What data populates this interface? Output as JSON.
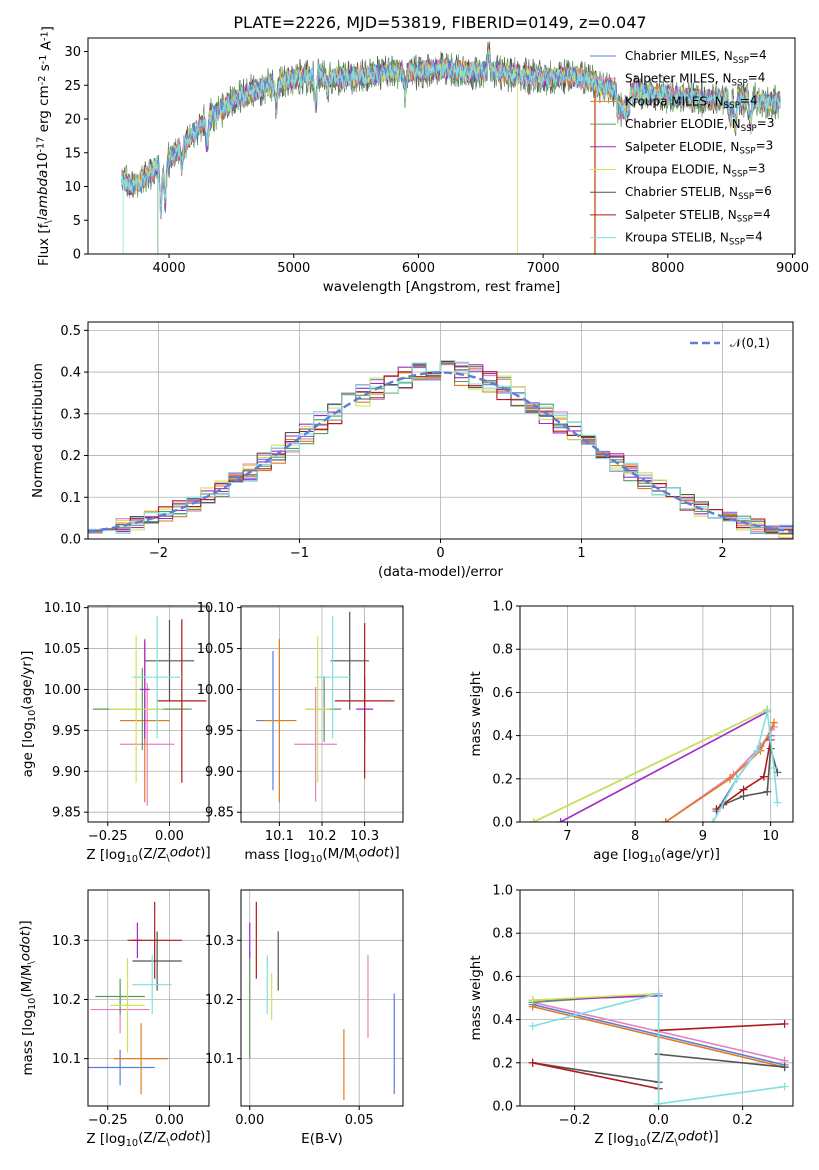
{
  "figure": {
    "title": "PLATE=2226, MJD=53819, FIBERID=0149, z=0.047"
  },
  "colors": {
    "Chabrier MILES": "#5b7fd6",
    "Salpeter MILES": "#e87fc0",
    "Kroupa MILES": "#e07b20",
    "Chabrier ELODIE": "#5c9a5c",
    "Salpeter ELODIE": "#a329c9",
    "Kroupa ELODIE": "#cfe35a",
    "Chabrier STELIB": "#555555",
    "Salpeter STELIB": "#b01a1a",
    "Kroupa STELIB": "#7fe0e0"
  },
  "chart_data": [
    {
      "id": "spectrum",
      "type": "line",
      "xlabel": "wavelength [Angstrom, rest frame]",
      "ylabel": "Flux [f$_\\lambda$10$^{-17}$ erg cm$^{-2}$ s$^{-1}$ A$^{-1}$]",
      "xlim": [
        3350,
        9020
      ],
      "ylim": [
        0,
        32
      ],
      "xticks": [
        4000,
        5000,
        6000,
        7000,
        8000,
        9000
      ],
      "yticks": [
        0,
        5,
        10,
        15,
        20,
        25,
        30
      ],
      "grid": false,
      "legend_position": "top-right",
      "legend": [
        "Chabrier MILES, N$_{SSP}$=4",
        "Salpeter MILES, N$_{SSP}$=4",
        "Kroupa MILES, N$_{SSP}$=4",
        "Chabrier ELODIE, N$_{SSP}$=3",
        "Salpeter ELODIE, N$_{SSP}$=3",
        "Kroupa ELODIE, N$_{SSP}$=3",
        "Chabrier STELIB, N$_{SSP}$=6",
        "Salpeter STELIB, N$_{SSP}$=4",
        "Kroupa STELIB, N$_{SSP}$=4"
      ],
      "continuum_x": [
        3620,
        3700,
        3800,
        3900,
        4000,
        4100,
        4200,
        4300,
        4400,
        4500,
        4600,
        4800,
        5000,
        5200,
        5400,
        5600,
        5800,
        6000,
        6200,
        6400,
        6600,
        6800,
        7000,
        7200,
        7400,
        7600,
        7800,
        8000,
        8200,
        8400,
        8600,
        8800
      ],
      "continuum_y": [
        11,
        10,
        11,
        13,
        14,
        16,
        18,
        20,
        21,
        22.5,
        23.5,
        25,
        26,
        26.5,
        26,
        26.5,
        27,
        27,
        27.5,
        27,
        27,
        26.5,
        26,
        26.5,
        25.5,
        24,
        24,
        23.5,
        23,
        23,
        23,
        22.5
      ],
      "series": [
        {
          "name": "Chabrier MILES",
          "drop_x": null
        },
        {
          "name": "Salpeter MILES",
          "drop_x": null
        },
        {
          "name": "Kroupa MILES",
          "drop_x": 7420
        },
        {
          "name": "Chabrier ELODIE",
          "drop_x": 3910
        },
        {
          "name": "Salpeter ELODIE",
          "drop_x": null
        },
        {
          "name": "Kroupa ELODIE",
          "drop_x": 6795
        },
        {
          "name": "Chabrier STELIB",
          "drop_x": null
        },
        {
          "name": "Salpeter STELIB",
          "drop_x": 7415
        },
        {
          "name": "Kroupa STELIB",
          "drop_x": 3630
        }
      ]
    },
    {
      "id": "residuals",
      "type": "line",
      "xlabel": "(data-model)/error",
      "ylabel": "Normed distribution",
      "xlim": [
        -2.5,
        2.5
      ],
      "ylim": [
        0,
        0.52
      ],
      "xticks": [
        -2,
        -1,
        0,
        1,
        2
      ],
      "yticks": [
        0.0,
        0.1,
        0.2,
        0.3,
        0.4,
        0.5
      ],
      "grid": true,
      "legend_position": "top-right",
      "legend": [
        "$\\mathcal{N}(0,1)$"
      ],
      "bin_width": 0.1,
      "bin_start": -2.5,
      "reference_curve": "normal(0,1)"
    },
    {
      "id": "age_vs_Z",
      "type": "scatter",
      "xlabel": "Z [log$_{10}$(Z/Z$_\\odot$)]",
      "ylabel": "age  [log$_{10}$(age/yr)]",
      "xlim": [
        -0.33,
        0.16
      ],
      "ylim": [
        9.838,
        10.102
      ],
      "xticks": [
        -0.25,
        0.0
      ],
      "yticks": [
        9.85,
        9.9,
        9.95,
        10.0,
        10.05,
        10.1
      ],
      "grid": true,
      "points": [
        {
          "name": "Chabrier MILES",
          "x": -0.1,
          "xerr": 0.1,
          "y": 9.962,
          "yerr": 0.03
        },
        {
          "name": "Salpeter MILES",
          "x": -0.09,
          "xerr": 0.11,
          "y": 9.933,
          "yerr": 0.075
        },
        {
          "name": "Kroupa MILES",
          "x": -0.1,
          "xerr": 0.1,
          "y": 9.962,
          "yerr": 0.1
        },
        {
          "name": "Chabrier ELODIE",
          "x": -0.11,
          "xerr": 0.2,
          "y": 9.976,
          "yerr": 0.05
        },
        {
          "name": "Salpeter ELODIE",
          "x": -0.1,
          "xerr": 0.02,
          "y": 10.0,
          "yerr": 0.06
        },
        {
          "name": "Kroupa ELODIE",
          "x": -0.135,
          "xerr": 0.11,
          "y": 9.976,
          "yerr": 0.09
        },
        {
          "name": "Chabrier STELIB",
          "x": 0.0,
          "xerr": 0.1,
          "y": 10.035,
          "yerr": 0.05
        },
        {
          "name": "Salpeter STELIB",
          "x": 0.05,
          "xerr": 0.1,
          "y": 9.986,
          "yerr": 0.1
        },
        {
          "name": "Kroupa STELIB",
          "x": -0.05,
          "xerr": 0.1,
          "y": 10.015,
          "yerr": 0.075
        }
      ]
    },
    {
      "id": "age_vs_mass",
      "type": "scatter",
      "xlabel": "mass [log$_{10}$(M/M$_\\odot$)]",
      "ylabel": "",
      "xlim": [
        10.01,
        10.39
      ],
      "ylim": [
        9.838,
        10.102
      ],
      "xticks": [
        10.1,
        10.2,
        10.3
      ],
      "yticks": [
        9.85,
        9.9,
        9.95,
        10.0,
        10.05,
        10.1
      ],
      "grid": true,
      "points": [
        {
          "name": "Chabrier MILES",
          "x": 10.085,
          "xerr": 0.04,
          "y": 9.962,
          "yerr": 0.085
        },
        {
          "name": "Salpeter MILES",
          "x": 10.185,
          "xerr": 0.05,
          "y": 9.933,
          "yerr": 0.07
        },
        {
          "name": "Kroupa MILES",
          "x": 10.1,
          "xerr": 0.04,
          "y": 9.962,
          "yerr": 0.1
        },
        {
          "name": "Chabrier ELODIE",
          "x": 10.205,
          "xerr": 0.04,
          "y": 9.976,
          "yerr": 0.04
        },
        {
          "name": "Salpeter ELODIE",
          "x": 10.3,
          "xerr": 0.02,
          "y": 9.976,
          "yerr": 0.04
        },
        {
          "name": "Kroupa ELODIE",
          "x": 10.19,
          "xerr": 0.03,
          "y": 9.976,
          "yerr": 0.09
        },
        {
          "name": "Chabrier STELIB",
          "x": 10.265,
          "xerr": 0.045,
          "y": 10.035,
          "yerr": 0.06
        },
        {
          "name": "Salpeter STELIB",
          "x": 10.3,
          "xerr": 0.07,
          "y": 9.986,
          "yerr": 0.095
        },
        {
          "name": "Kroupa STELIB",
          "x": 10.225,
          "xerr": 0.04,
          "y": 10.015,
          "yerr": 0.075
        }
      ]
    },
    {
      "id": "weight_vs_age",
      "type": "line",
      "xlabel": "age  [log$_{10}$(age/yr)]",
      "ylabel": "mass weight",
      "xlim": [
        6.3,
        10.33
      ],
      "ylim": [
        0,
        1.0
      ],
      "xticks": [
        7,
        8,
        9,
        10
      ],
      "yticks": [
        0.0,
        0.2,
        0.4,
        0.6,
        0.8,
        1.0
      ],
      "grid": true,
      "series": [
        {
          "name": "Chabrier MILES",
          "x": [
            9.2,
            9.5,
            9.85,
            10.0
          ],
          "y": [
            0.05,
            0.2,
            0.35,
            0.4
          ]
        },
        {
          "name": "Salpeter MILES",
          "x": [
            8.45,
            9.45,
            9.85,
            10.05
          ],
          "y": [
            0.0,
            0.22,
            0.35,
            0.44
          ]
        },
        {
          "name": "Kroupa MILES",
          "x": [
            8.45,
            9.4,
            9.85,
            10.05
          ],
          "y": [
            0.0,
            0.2,
            0.33,
            0.46
          ]
        },
        {
          "name": "Chabrier ELODIE",
          "x": [
            6.5,
            9.95
          ],
          "y": [
            0.0,
            0.52
          ]
        },
        {
          "name": "Salpeter ELODIE",
          "x": [
            6.9,
            9.95
          ],
          "y": [
            0.0,
            0.51
          ]
        },
        {
          "name": "Kroupa ELODIE",
          "x": [
            6.5,
            9.95
          ],
          "y": [
            0.0,
            0.52
          ]
        },
        {
          "name": "Chabrier STELIB",
          "x": [
            9.3,
            9.6,
            9.95,
            10.0,
            10.1
          ],
          "y": [
            0.08,
            0.12,
            0.14,
            0.34,
            0.23
          ]
        },
        {
          "name": "Salpeter STELIB",
          "x": [
            9.2,
            9.6,
            9.9,
            10.0
          ],
          "y": [
            0.06,
            0.15,
            0.21,
            0.38
          ]
        },
        {
          "name": "Kroupa STELIB",
          "x": [
            9.15,
            9.5,
            9.8,
            9.95,
            10.05,
            10.1
          ],
          "y": [
            0.0,
            0.2,
            0.33,
            0.51,
            0.25,
            0.09
          ]
        }
      ]
    },
    {
      "id": "mass_vs_Z",
      "type": "scatter",
      "xlabel": "Z [log$_{10}$(Z/Z$_\\odot$)]",
      "ylabel": "mass [log$_{10}$(M/M$_\\odot$)]",
      "xlim": [
        -0.33,
        0.16
      ],
      "ylim": [
        10.02,
        10.385
      ],
      "xticks": [
        -0.25,
        0.0
      ],
      "yticks": [
        10.1,
        10.2,
        10.3
      ],
      "grid": true,
      "points": [
        {
          "name": "Chabrier MILES",
          "x": -0.2,
          "xerr": 0.14,
          "y": 10.085,
          "yerr": 0.03
        },
        {
          "name": "Salpeter MILES",
          "x": -0.2,
          "xerr": 0.12,
          "y": 10.183,
          "yerr": 0.04
        },
        {
          "name": "Kroupa MILES",
          "x": -0.115,
          "xerr": 0.11,
          "y": 10.1,
          "yerr": 0.06
        },
        {
          "name": "Chabrier ELODIE",
          "x": -0.2,
          "xerr": 0.1,
          "y": 10.205,
          "yerr": 0.03
        },
        {
          "name": "Salpeter ELODIE",
          "x": -0.13,
          "xerr": 0.02,
          "y": 10.3,
          "yerr": 0.03
        },
        {
          "name": "Kroupa ELODIE",
          "x": -0.17,
          "xerr": 0.07,
          "y": 10.19,
          "yerr": 0.08
        },
        {
          "name": "Chabrier STELIB",
          "x": -0.05,
          "xerr": 0.1,
          "y": 10.265,
          "yerr": 0.05
        },
        {
          "name": "Salpeter STELIB",
          "x": -0.06,
          "xerr": 0.11,
          "y": 10.3,
          "yerr": 0.065
        },
        {
          "name": "Kroupa STELIB",
          "x": -0.07,
          "xerr": 0.08,
          "y": 10.225,
          "yerr": 0.05
        }
      ]
    },
    {
      "id": "mass_vs_ebv",
      "type": "scatter",
      "xlabel": "E(B-V)",
      "ylabel": "",
      "xlim": [
        -0.004,
        0.07
      ],
      "ylim": [
        10.02,
        10.385
      ],
      "xticks": [
        0.0,
        0.05
      ],
      "yticks": [
        10.1,
        10.2,
        10.3
      ],
      "grid": true,
      "points": [
        {
          "name": "Chabrier MILES",
          "x": 0.066,
          "xerr": 0,
          "y": 10.125,
          "yerr": 0.085
        },
        {
          "name": "Salpeter MILES",
          "x": 0.054,
          "xerr": 0,
          "y": 10.205,
          "yerr": 0.07
        },
        {
          "name": "Kroupa MILES",
          "x": 0.043,
          "xerr": 0,
          "y": 10.09,
          "yerr": 0.06
        },
        {
          "name": "Chabrier ELODIE",
          "x": 0.0,
          "xerr": 0,
          "y": 10.19,
          "yerr": 0.09
        },
        {
          "name": "Salpeter ELODIE",
          "x": 0.0,
          "xerr": 0,
          "y": 10.3,
          "yerr": 0.03
        },
        {
          "name": "Kroupa ELODIE",
          "x": 0.01,
          "xerr": 0,
          "y": 10.205,
          "yerr": 0.04
        },
        {
          "name": "Chabrier STELIB",
          "x": 0.013,
          "xerr": 0,
          "y": 10.265,
          "yerr": 0.05
        },
        {
          "name": "Salpeter STELIB",
          "x": 0.003,
          "xerr": 0,
          "y": 10.3,
          "yerr": 0.065
        },
        {
          "name": "Kroupa STELIB",
          "x": 0.008,
          "xerr": 0,
          "y": 10.225,
          "yerr": 0.05
        }
      ]
    },
    {
      "id": "weight_vs_Z",
      "type": "line",
      "xlabel": "Z [log$_{10}$(Z/Z$_\\odot$)]",
      "ylabel": "mass weight",
      "xlim": [
        -0.33,
        0.32
      ],
      "ylim": [
        0,
        1.0
      ],
      "xticks": [
        -0.2,
        0.0,
        0.2
      ],
      "yticks": [
        0.0,
        0.2,
        0.4,
        0.6,
        0.8,
        1.0
      ],
      "grid": true,
      "series": [
        {
          "name": "Chabrier MILES",
          "x": [
            -0.3,
            0.3
          ],
          "y": [
            0.47,
            0.19
          ]
        },
        {
          "name": "Salpeter MILES",
          "x": [
            -0.3,
            0.3
          ],
          "y": [
            0.48,
            0.21
          ]
        },
        {
          "name": "Kroupa MILES",
          "x": [
            -0.3,
            0.3
          ],
          "y": [
            0.46,
            0.18
          ]
        },
        {
          "name": "Chabrier ELODIE",
          "x": [
            -0.3,
            0.0
          ],
          "y": [
            0.48,
            0.52
          ]
        },
        {
          "name": "Salpeter ELODIE",
          "x": [
            -0.3,
            0.0
          ],
          "y": [
            0.49,
            0.51
          ]
        },
        {
          "name": "Kroupa ELODIE",
          "x": [
            -0.3,
            0.0
          ],
          "y": [
            0.49,
            0.52
          ]
        },
        {
          "name": "Chabrier STELIB",
          "x": [
            -0.3,
            0.0,
            0.0,
            0.3
          ],
          "y": [
            0.2,
            0.11,
            0.24,
            0.18
          ]
        },
        {
          "name": "Salpeter STELIB",
          "x": [
            -0.3,
            0.0,
            0.0,
            0.3
          ],
          "y": [
            0.2,
            0.08,
            0.35,
            0.38
          ]
        },
        {
          "name": "Kroupa STELIB",
          "x": [
            -0.3,
            0.0,
            0.0,
            0.3
          ],
          "y": [
            0.37,
            0.52,
            0.01,
            0.09
          ]
        }
      ]
    }
  ]
}
